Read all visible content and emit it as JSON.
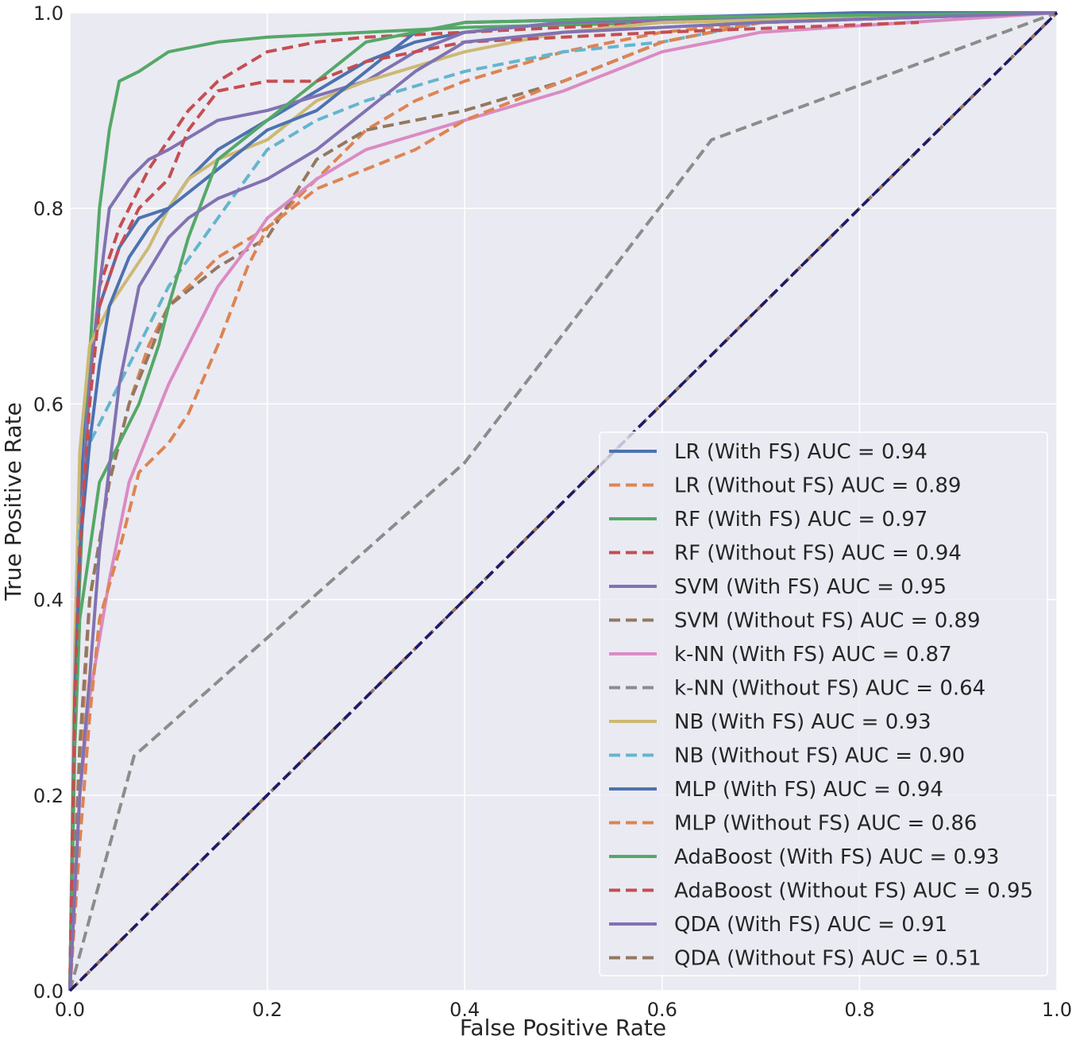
{
  "chart_data": {
    "type": "line",
    "title": "",
    "xlabel": "False Positive Rate",
    "ylabel": "True Positive Rate",
    "xlim": [
      0.0,
      1.0
    ],
    "ylim": [
      0.0,
      1.0
    ],
    "xticks": [
      "0.0",
      "0.2",
      "0.4",
      "0.6",
      "0.8",
      "1.0"
    ],
    "yticks": [
      "0.0",
      "0.2",
      "0.4",
      "0.6",
      "0.8",
      "1.0"
    ],
    "grid": true,
    "legend_position": "lower-right",
    "series": [
      {
        "name": "LR (With FS) AUC = 0.94",
        "color": "#4c72b0",
        "dash": "solid",
        "x": [
          0,
          0.005,
          0.01,
          0.02,
          0.03,
          0.05,
          0.07,
          0.1,
          0.12,
          0.15,
          0.2,
          0.25,
          0.3,
          0.35,
          0.4,
          0.5,
          0.6,
          0.8,
          1.0
        ],
        "y": [
          0,
          0.3,
          0.5,
          0.64,
          0.7,
          0.76,
          0.79,
          0.8,
          0.83,
          0.86,
          0.89,
          0.92,
          0.95,
          0.97,
          0.98,
          0.99,
          0.995,
          1.0,
          1.0
        ]
      },
      {
        "name": "LR (Without FS) AUC = 0.89",
        "color": "#dd8452",
        "dash": "dashed",
        "x": [
          0,
          0.01,
          0.02,
          0.04,
          0.06,
          0.08,
          0.1,
          0.15,
          0.2,
          0.25,
          0.3,
          0.35,
          0.4,
          0.5,
          0.6,
          0.7,
          1.0
        ],
        "y": [
          0,
          0.22,
          0.4,
          0.52,
          0.6,
          0.66,
          0.7,
          0.75,
          0.78,
          0.83,
          0.88,
          0.91,
          0.93,
          0.96,
          0.98,
          0.99,
          1.0
        ]
      },
      {
        "name": "RF (With FS) AUC = 0.97",
        "color": "#55a868",
        "dash": "solid",
        "x": [
          0,
          0.005,
          0.01,
          0.02,
          0.03,
          0.04,
          0.05,
          0.07,
          0.1,
          0.15,
          0.2,
          0.3,
          0.4,
          0.6,
          0.8,
          1.0
        ],
        "y": [
          0,
          0.3,
          0.42,
          0.65,
          0.8,
          0.88,
          0.93,
          0.94,
          0.96,
          0.97,
          0.975,
          0.98,
          0.985,
          0.99,
          0.995,
          1.0
        ]
      },
      {
        "name": "RF (Without FS) AUC = 0.94",
        "color": "#c44e52",
        "dash": "dashed",
        "x": [
          0,
          0.005,
          0.01,
          0.02,
          0.03,
          0.05,
          0.08,
          0.1,
          0.12,
          0.15,
          0.2,
          0.25,
          0.3,
          0.4,
          0.6,
          0.8,
          1.0
        ],
        "y": [
          0,
          0.3,
          0.45,
          0.62,
          0.72,
          0.78,
          0.84,
          0.87,
          0.9,
          0.93,
          0.96,
          0.97,
          0.975,
          0.98,
          0.99,
          0.995,
          1.0
        ]
      },
      {
        "name": "SVM (With FS) AUC = 0.95",
        "color": "#8172b2",
        "dash": "solid",
        "x": [
          0,
          0.005,
          0.01,
          0.02,
          0.03,
          0.04,
          0.06,
          0.08,
          0.1,
          0.15,
          0.2,
          0.3,
          0.35,
          0.4,
          0.5,
          0.7,
          1.0
        ],
        "y": [
          0,
          0.3,
          0.45,
          0.62,
          0.72,
          0.8,
          0.83,
          0.85,
          0.86,
          0.89,
          0.9,
          0.93,
          0.96,
          0.98,
          0.99,
          0.995,
          1.0
        ]
      },
      {
        "name": "SVM (Without FS) AUC = 0.89",
        "color": "#937860",
        "dash": "dashed",
        "x": [
          0,
          0.01,
          0.02,
          0.04,
          0.06,
          0.08,
          0.1,
          0.15,
          0.2,
          0.25,
          0.3,
          0.4,
          0.5,
          0.6,
          0.7,
          1.0
        ],
        "y": [
          0,
          0.25,
          0.4,
          0.52,
          0.6,
          0.65,
          0.7,
          0.74,
          0.77,
          0.85,
          0.88,
          0.9,
          0.93,
          0.97,
          0.99,
          1.0
        ]
      },
      {
        "name": "k-NN (With FS) AUC = 0.87",
        "color": "#da8bc3",
        "dash": "solid",
        "x": [
          0,
          0.01,
          0.02,
          0.04,
          0.06,
          0.08,
          0.1,
          0.12,
          0.15,
          0.18,
          0.2,
          0.25,
          0.3,
          0.4,
          0.5,
          0.6,
          0.7,
          1.0
        ],
        "y": [
          0,
          0.2,
          0.3,
          0.42,
          0.52,
          0.57,
          0.62,
          0.66,
          0.72,
          0.76,
          0.79,
          0.83,
          0.86,
          0.89,
          0.92,
          0.96,
          0.98,
          1.0
        ]
      },
      {
        "name": "k-NN (Without FS) AUC = 0.64",
        "color": "#8c8c8c",
        "dash": "dashed",
        "x": [
          0,
          0.065,
          0.4,
          0.65,
          1.0
        ],
        "y": [
          0,
          0.24,
          0.54,
          0.87,
          1.0
        ]
      },
      {
        "name": "NB (With FS) AUC = 0.93",
        "color": "#ccb974",
        "dash": "solid",
        "x": [
          0,
          0.005,
          0.01,
          0.02,
          0.04,
          0.06,
          0.08,
          0.1,
          0.12,
          0.15,
          0.2,
          0.25,
          0.3,
          0.4,
          0.5,
          0.6,
          0.8,
          1.0
        ],
        "y": [
          0,
          0.35,
          0.55,
          0.66,
          0.7,
          0.73,
          0.76,
          0.8,
          0.83,
          0.85,
          0.87,
          0.91,
          0.93,
          0.96,
          0.98,
          0.99,
          0.995,
          1.0
        ]
      },
      {
        "name": "NB (Without FS) AUC = 0.90",
        "color": "#64b5cd",
        "dash": "dashed",
        "x": [
          0,
          0.005,
          0.01,
          0.02,
          0.04,
          0.06,
          0.08,
          0.1,
          0.15,
          0.2,
          0.25,
          0.3,
          0.4,
          0.5,
          0.6,
          0.7,
          1.0
        ],
        "y": [
          0,
          0.3,
          0.48,
          0.56,
          0.6,
          0.64,
          0.68,
          0.72,
          0.79,
          0.86,
          0.89,
          0.91,
          0.94,
          0.96,
          0.97,
          0.99,
          1.0
        ]
      },
      {
        "name": "MLP (With FS) AUC = 0.94",
        "color": "#4c72b0",
        "dash": "solid",
        "x": [
          0,
          0.005,
          0.01,
          0.02,
          0.03,
          0.04,
          0.06,
          0.08,
          0.1,
          0.15,
          0.2,
          0.25,
          0.3,
          0.35,
          0.4,
          0.6,
          1.0
        ],
        "y": [
          0,
          0.3,
          0.45,
          0.56,
          0.64,
          0.7,
          0.75,
          0.78,
          0.8,
          0.84,
          0.88,
          0.9,
          0.94,
          0.98,
          0.99,
          0.995,
          1.0
        ]
      },
      {
        "name": "MLP (Without FS) AUC = 0.86",
        "color": "#dd8452",
        "dash": "dashed",
        "x": [
          0,
          0.01,
          0.02,
          0.03,
          0.05,
          0.07,
          0.1,
          0.12,
          0.15,
          0.18,
          0.2,
          0.25,
          0.3,
          0.35,
          0.4,
          0.5,
          0.6,
          0.7,
          1.0
        ],
        "y": [
          0,
          0.15,
          0.28,
          0.38,
          0.45,
          0.53,
          0.56,
          0.59,
          0.66,
          0.74,
          0.78,
          0.82,
          0.84,
          0.86,
          0.89,
          0.93,
          0.97,
          0.99,
          1.0
        ]
      },
      {
        "name": "AdaBoost (With FS) AUC = 0.93",
        "color": "#55a868",
        "dash": "solid",
        "x": [
          0,
          0.005,
          0.01,
          0.02,
          0.03,
          0.05,
          0.07,
          0.09,
          0.1,
          0.12,
          0.15,
          0.2,
          0.25,
          0.3,
          0.4,
          0.6,
          1.0
        ],
        "y": [
          0,
          0.25,
          0.38,
          0.45,
          0.52,
          0.56,
          0.6,
          0.66,
          0.7,
          0.77,
          0.85,
          0.89,
          0.93,
          0.97,
          0.99,
          0.995,
          1.0
        ]
      },
      {
        "name": "AdaBoost (Without FS) AUC = 0.95",
        "color": "#c44e52",
        "dash": "dashed",
        "x": [
          0,
          0.005,
          0.01,
          0.02,
          0.03,
          0.05,
          0.07,
          0.1,
          0.12,
          0.15,
          0.2,
          0.25,
          0.3,
          0.4,
          0.6,
          0.86
        ],
        "y": [
          0,
          0.3,
          0.45,
          0.6,
          0.7,
          0.76,
          0.8,
          0.83,
          0.88,
          0.92,
          0.93,
          0.93,
          0.95,
          0.97,
          0.98,
          0.99
        ]
      },
      {
        "name": "QDA (With FS) AUC = 0.91",
        "color": "#8172b2",
        "dash": "solid",
        "x": [
          0,
          0.01,
          0.02,
          0.03,
          0.05,
          0.07,
          0.1,
          0.12,
          0.15,
          0.2,
          0.25,
          0.3,
          0.35,
          0.4,
          0.5,
          0.7,
          1.0
        ],
        "y": [
          0,
          0.2,
          0.32,
          0.45,
          0.62,
          0.72,
          0.77,
          0.79,
          0.81,
          0.83,
          0.86,
          0.9,
          0.94,
          0.97,
          0.98,
          0.99,
          1.0
        ]
      },
      {
        "name": "QDA (Without FS) AUC = 0.51",
        "color": "#937860",
        "dash": "dashed",
        "x": [
          0,
          1.0
        ],
        "y": [
          0,
          1.0
        ]
      }
    ],
    "reference_line": {
      "color": "#1a1a6e",
      "dash": "dashed",
      "x": [
        0,
        1
      ],
      "y": [
        0,
        1
      ]
    }
  }
}
